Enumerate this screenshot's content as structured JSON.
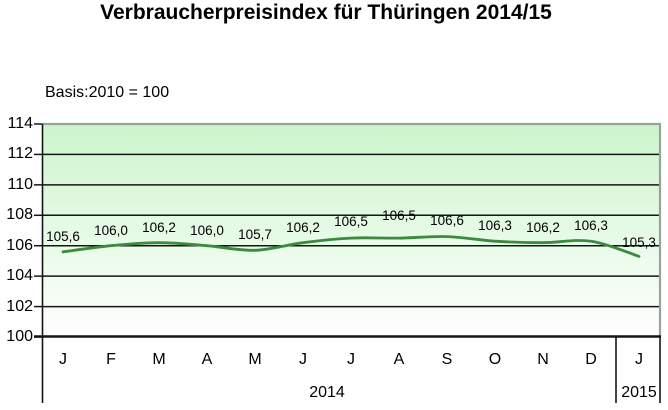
{
  "title": "Verbraucherpreisindex für Thüringen 2014/15",
  "subtitle": "Basis:2010 = 100",
  "chart_data": {
    "type": "line",
    "title": "Verbraucherpreisindex für Thüringen 2014/15",
    "subtitle": "Basis:2010 = 100",
    "x": [
      "J",
      "F",
      "M",
      "A",
      "M",
      "J",
      "J",
      "A",
      "S",
      "O",
      "N",
      "D",
      "J"
    ],
    "series": [
      {
        "name": "Verbraucherpreisindex Thüringen",
        "values": [
          105.6,
          106.0,
          106.2,
          106.0,
          105.7,
          106.2,
          106.5,
          106.5,
          106.6,
          106.3,
          106.2,
          106.3,
          105.3
        ]
      }
    ],
    "point_labels": [
      "105,6",
      "106,0",
      "106,2",
      "106,0",
      "105,7",
      "106,2",
      "106,5",
      "106,5",
      "106,6",
      "106,3",
      "106,2",
      "106,3",
      "105,3"
    ],
    "year_groups": [
      {
        "label": "2014",
        "count": 12
      },
      {
        "label": "2015",
        "count": 1
      }
    ],
    "ylim": [
      100,
      114
    ],
    "ytick_step": 2,
    "yticks": [
      "100",
      "102",
      "104",
      "106",
      "108",
      "110",
      "112",
      "114"
    ],
    "grid": true,
    "legend": "none",
    "line_color": "#3b8a3f",
    "grid_color": "#151515",
    "border_color": "#9aa39a",
    "plot_bg_top": "#ccf5cc",
    "plot_bg_bottom": "#ffffff"
  }
}
